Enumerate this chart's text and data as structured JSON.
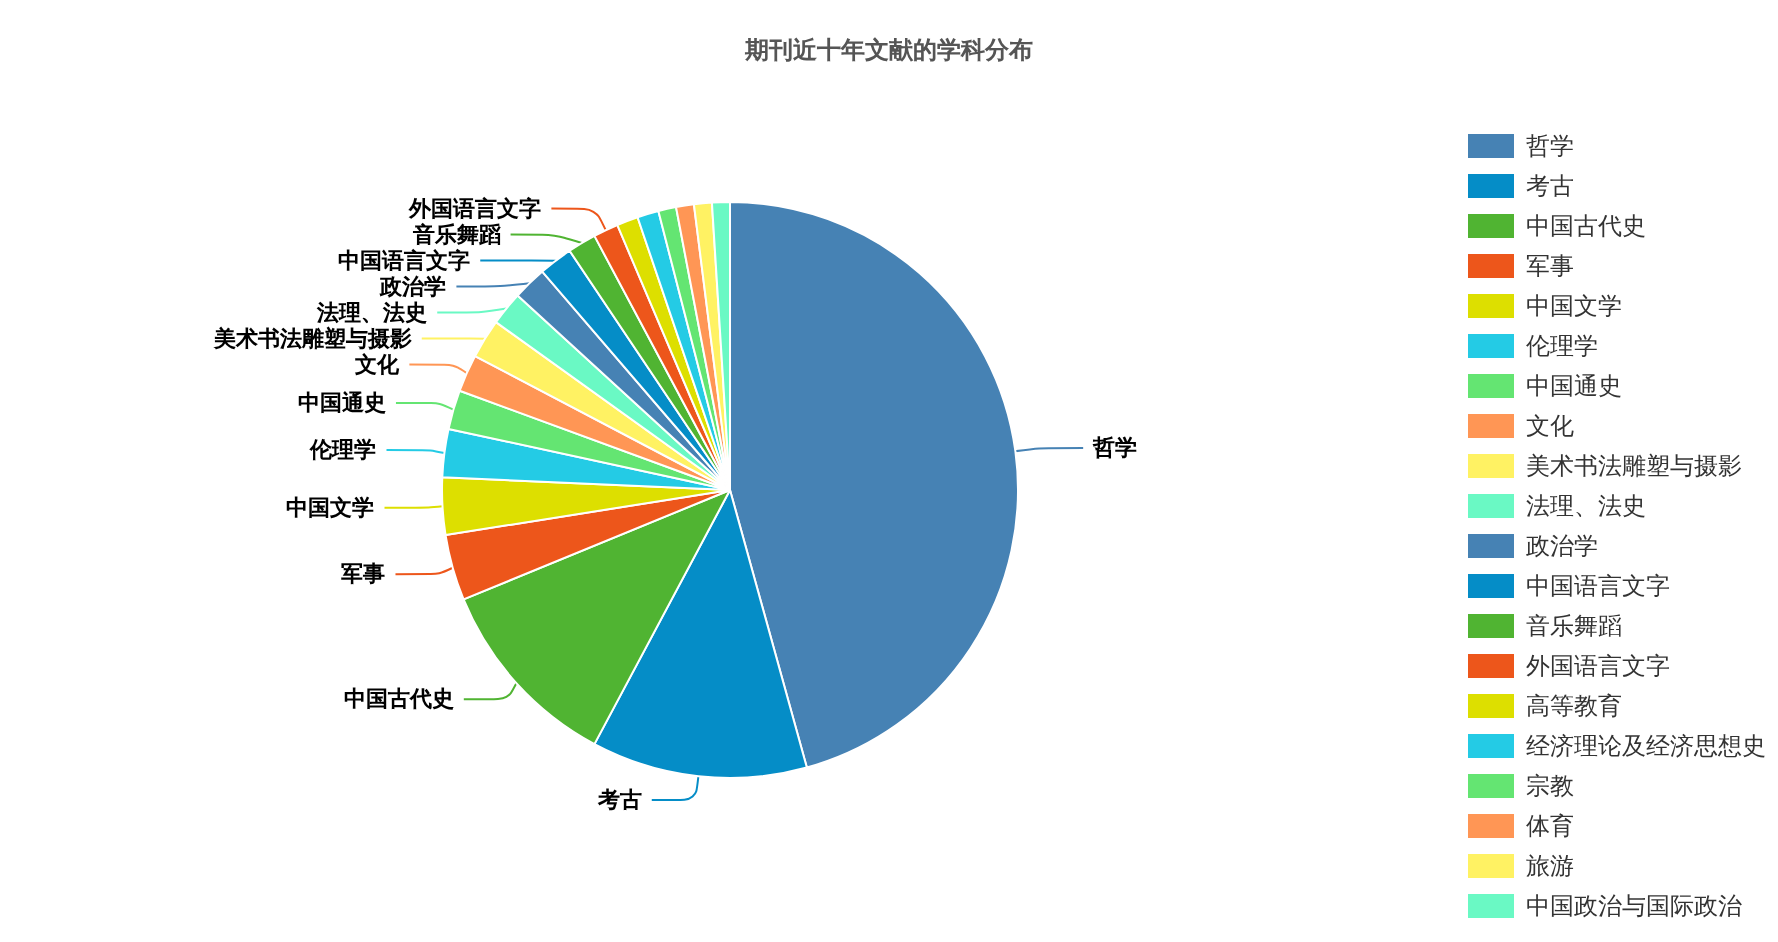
{
  "chart_data": {
    "type": "pie",
    "title": "期刊近十年文献的学科分布",
    "categories": [
      "哲学",
      "考古",
      "中国古代史",
      "军事",
      "中国文学",
      "伦理学",
      "中国通史",
      "文化",
      "美术书法雕塑与摄影",
      "法理、法史",
      "政治学",
      "中国语言文字",
      "音乐舞蹈",
      "外国语言文字",
      "高等教育",
      "经济理论及经济思想史",
      "宗教",
      "体育",
      "旅游",
      "中国政治与国际政治"
    ],
    "values": [
      45.7,
      12.1,
      11.0,
      3.7,
      3.2,
      2.7,
      2.2,
      2.1,
      2.2,
      1.9,
      1.9,
      1.9,
      1.6,
      1.4,
      1.2,
      1.2,
      1.0,
      1.0,
      1.0,
      1.0
    ],
    "colors": [
      "#4682b4",
      "#058dc7",
      "#50b432",
      "#ed561b",
      "#dddf00",
      "#24cbe5",
      "#64e572",
      "#ff9655",
      "#fff263",
      "#6af9c4",
      "#4682b4",
      "#058dc7",
      "#50b432",
      "#ed561b",
      "#dddf00",
      "#24cbe5",
      "#64e572",
      "#ff9655",
      "#fff263",
      "#6af9c4"
    ],
    "legend": "right"
  }
}
